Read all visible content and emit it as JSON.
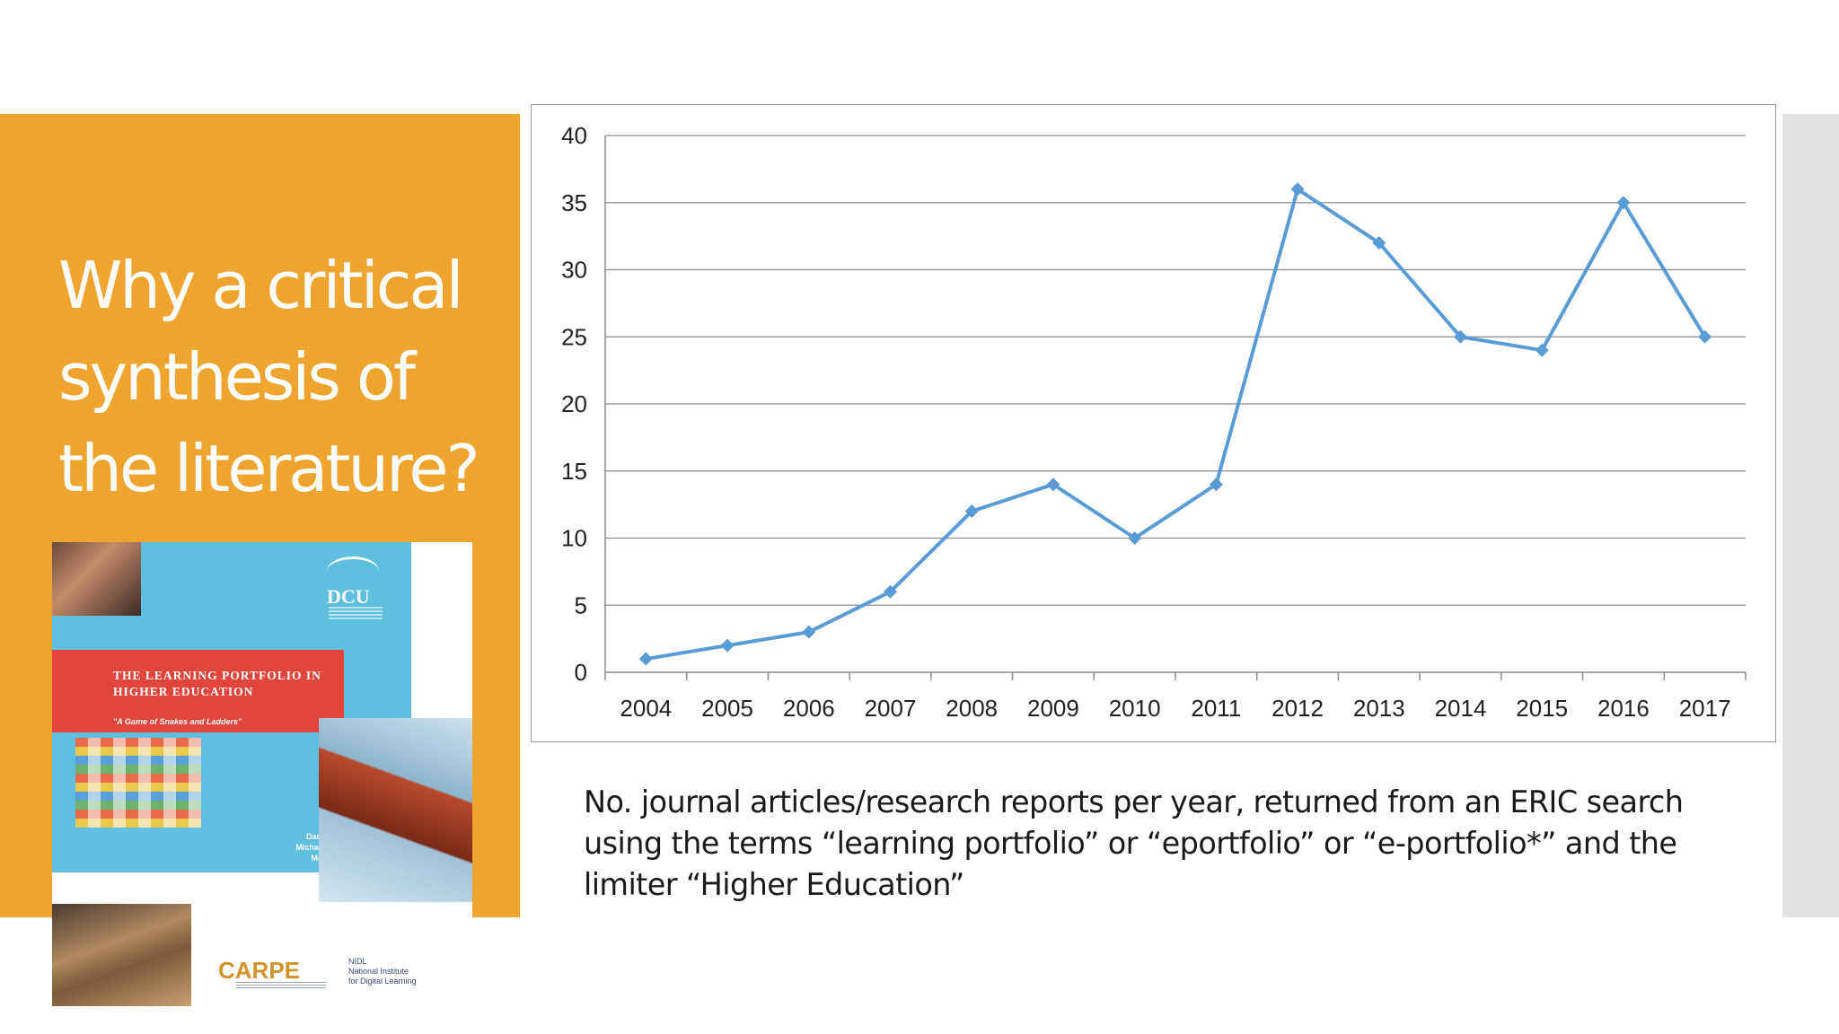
{
  "slide": {
    "title": "Why a critical synthesis of the literature?",
    "caption": "No. journal articles/research reports per year, returned from an ERIC search using the terms “learning portfolio” or “eportfolio” or “e-portfolio*” and the limiter “Higher Education”"
  },
  "book_cover": {
    "logo_text": "DCU",
    "title": "THE LEARNING PORTFOLIO IN HIGHER EDUCATION",
    "subtitle": "\"A Game of Snakes and Ladders\"",
    "authors": [
      "Darina Scully",
      "Michael O'Leary",
      "Mark Brown"
    ],
    "carpe_logo": "CARPE",
    "nidl_logo": "NIDL",
    "nidl_sub_1": "National Institute",
    "nidl_sub_2": "for Digital Learning"
  },
  "colors": {
    "orange": "#eea42e",
    "line": "#5b9bd5",
    "grey_strip": "#e2e2e2"
  },
  "chart_data": {
    "type": "line",
    "x": [
      2004,
      2005,
      2006,
      2007,
      2008,
      2009,
      2010,
      2011,
      2012,
      2013,
      2014,
      2015,
      2016,
      2017
    ],
    "series": [
      {
        "values": [
          1,
          2,
          3,
          6,
          12,
          14,
          10,
          14,
          36,
          32,
          25,
          24,
          35,
          25
        ]
      }
    ],
    "ylim": [
      0,
      40
    ],
    "yticks": [
      0,
      5,
      10,
      15,
      20,
      25,
      30,
      35,
      40
    ],
    "grid": true,
    "marker": "diamond",
    "title": "",
    "xlabel": "",
    "ylabel": ""
  }
}
